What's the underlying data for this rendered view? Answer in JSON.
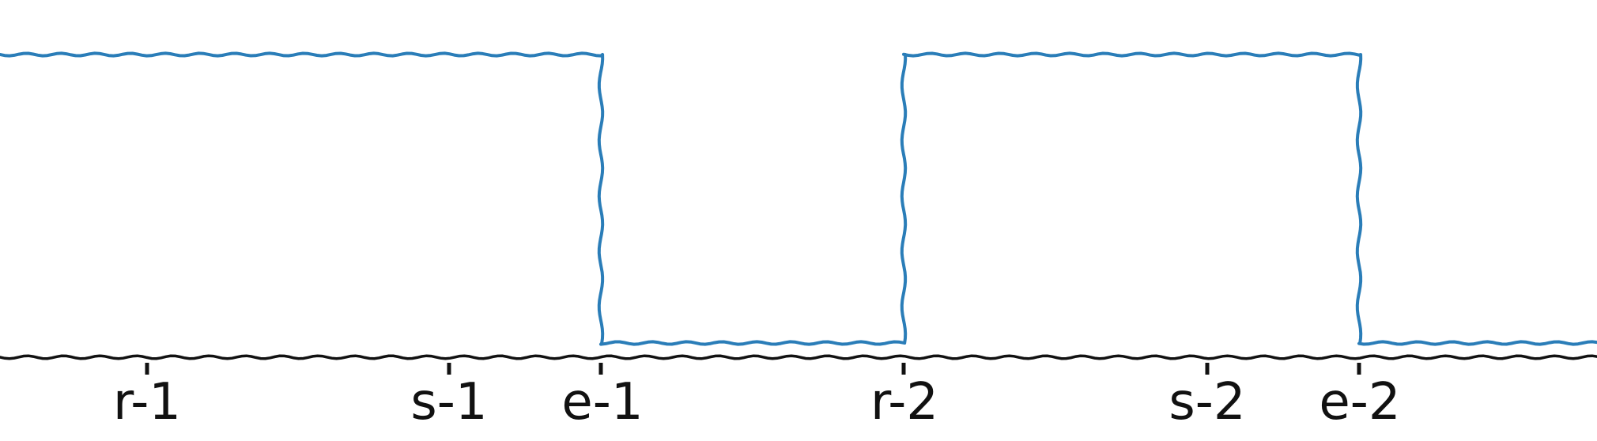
{
  "diagram": {
    "type": "timing",
    "colors": {
      "signal": "#2a7db8",
      "axis": "#111111",
      "background": "#ffffff"
    },
    "signal": [
      {
        "from": null,
        "to": "e-1",
        "level": "high"
      },
      {
        "from": "e-1",
        "to": "r-2",
        "level": "low"
      },
      {
        "from": "r-2",
        "to": "e-2",
        "level": "high"
      },
      {
        "from": "e-2",
        "to": null,
        "level": "low"
      }
    ],
    "ticks": [
      {
        "id": "r1",
        "label": "r-1"
      },
      {
        "id": "s1",
        "label": "s-1"
      },
      {
        "id": "e1",
        "label": "e-1"
      },
      {
        "id": "r2",
        "label": "r-2"
      },
      {
        "id": "s2",
        "label": "s-2"
      },
      {
        "id": "e2",
        "label": "e-2"
      }
    ]
  }
}
